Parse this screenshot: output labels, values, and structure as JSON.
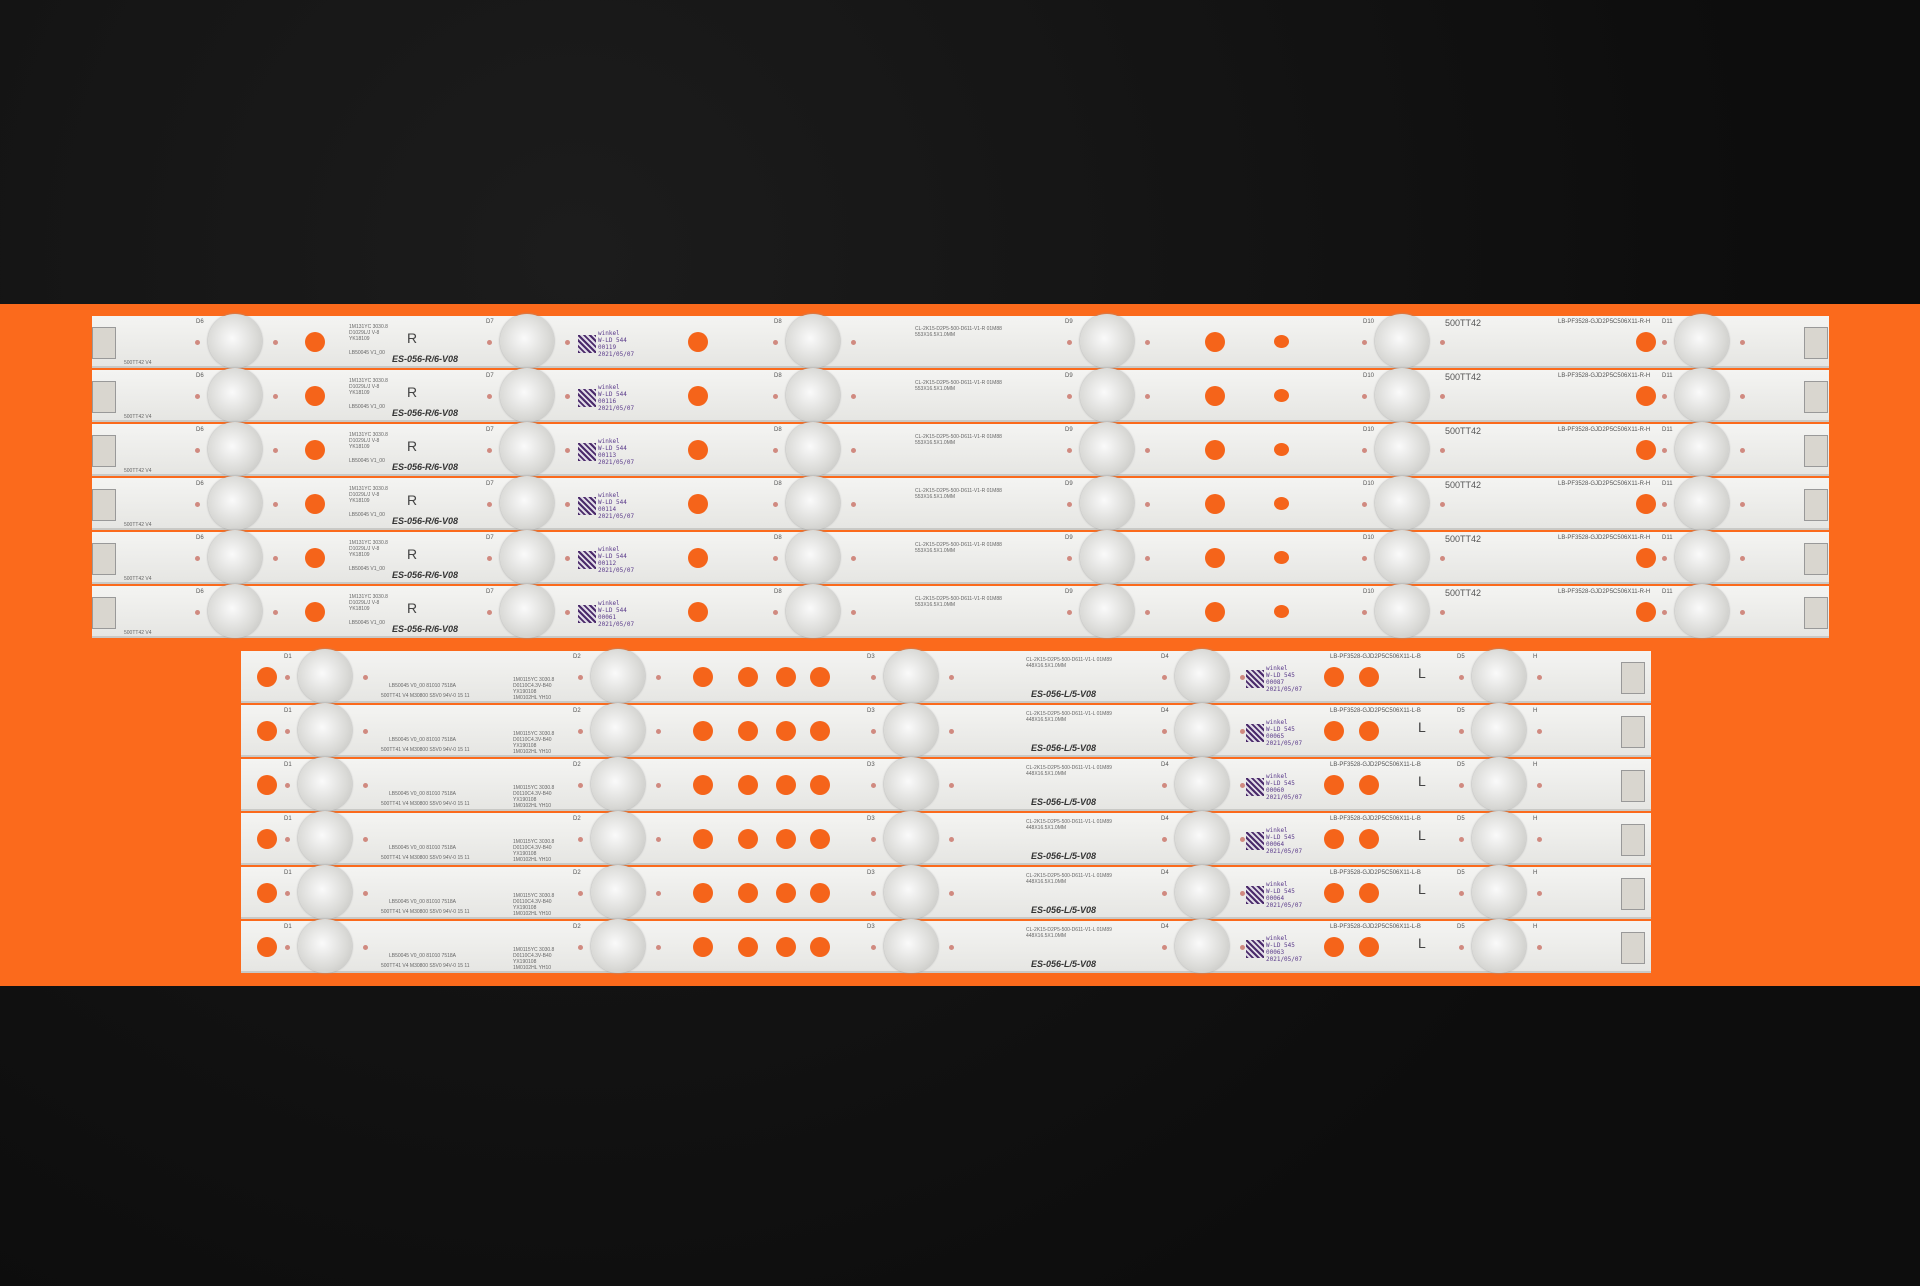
{
  "scene": {
    "background_color": "#111111",
    "band_color": "#fb6a1c",
    "strip_color": "#efefed",
    "dot_color": "#f5641a"
  },
  "top_group": {
    "led_labels": [
      "D6",
      "D7",
      "D8",
      "D9",
      "D10",
      "D11"
    ],
    "small_text": "1M131YC 3030.8 D1029L/J V-8 YK18109",
    "version_text": "LB50045 V1_00",
    "side_letter": "R",
    "model_text": "ES-056-R/6-V08",
    "spec_text": "CL-2K15-D2P5-500-D611-V1-R 01M88 553X16.5X1.0MM",
    "part_text": "500TT42",
    "pcb_code": "LB-PF3528-GJD2P5C506X11-R-H",
    "edge_text": "500TT42 V4",
    "qr_brand": "winkel",
    "qr_line": "W-LD 544",
    "serials": [
      "00119",
      "00116",
      "00113",
      "00114",
      "00112",
      "00061"
    ],
    "date": "2021/05/07"
  },
  "bottom_group": {
    "led_labels": [
      "D1",
      "D2",
      "D3",
      "D4",
      "D5"
    ],
    "version_text": "LB50045 V0_00 81010 7518A",
    "board_text": "500TT41 V4 M30800 S5V0 94V-0 15 11",
    "small_text": "1M0115YC 3030.8 D0110C4.3V-B40 YX190108 1M0102HL YH10",
    "spec_text": "CL-2K15-D2P5-500-D611-V1-L 01M89 448X16.5X1.0MM",
    "model_text": "ES-056-L/5-V08",
    "side_letter": "L",
    "h_mark": "H",
    "pcb_code": "LB-PF3528-GJD2P5C506X11-L-B",
    "qr_brand": "winkel",
    "qr_line": "W-LD 545",
    "serials": [
      "00087",
      "00065",
      "00060",
      "00064",
      "00064",
      "00063"
    ],
    "date": "2021/05/07"
  }
}
